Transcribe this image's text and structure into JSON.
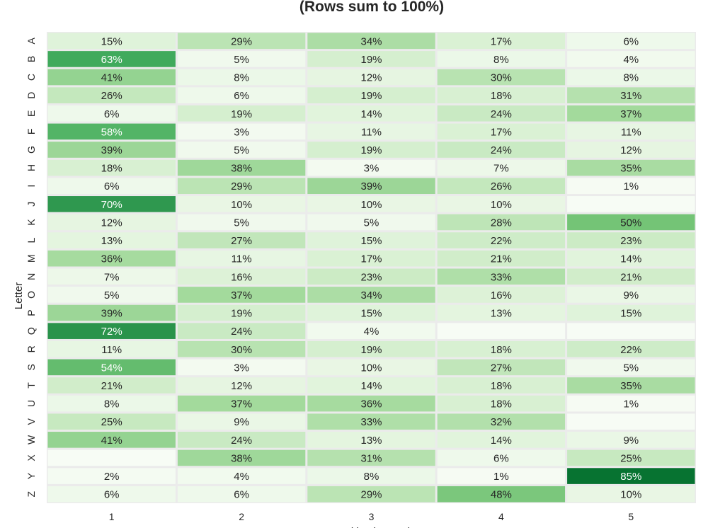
{
  "chart_data": {
    "type": "heatmap",
    "title": "(Rows sum to 100%)",
    "xlabel": "Position in Word",
    "ylabel": "Letter",
    "colormap": "Greens",
    "vrange": [
      0,
      100
    ],
    "x": [
      "1",
      "2",
      "3",
      "4",
      "5"
    ],
    "y": [
      "A",
      "B",
      "C",
      "D",
      "E",
      "F",
      "G",
      "H",
      "I",
      "J",
      "K",
      "L",
      "M",
      "N",
      "O",
      "P",
      "Q",
      "R",
      "S",
      "T",
      "U",
      "V",
      "W",
      "X",
      "Y",
      "Z"
    ],
    "values": [
      [
        15,
        29,
        34,
        17,
        6
      ],
      [
        63,
        5,
        19,
        8,
        4
      ],
      [
        41,
        8,
        12,
        30,
        8
      ],
      [
        26,
        6,
        19,
        18,
        31
      ],
      [
        6,
        19,
        14,
        24,
        37
      ],
      [
        58,
        3,
        11,
        17,
        11
      ],
      [
        39,
        5,
        19,
        24,
        12
      ],
      [
        18,
        38,
        3,
        7,
        35
      ],
      [
        6,
        29,
        39,
        26,
        1
      ],
      [
        70,
        10,
        10,
        10,
        null
      ],
      [
        12,
        5,
        5,
        28,
        50
      ],
      [
        13,
        27,
        15,
        22,
        23
      ],
      [
        36,
        11,
        17,
        21,
        14
      ],
      [
        7,
        16,
        23,
        33,
        21
      ],
      [
        5,
        37,
        34,
        16,
        9
      ],
      [
        39,
        19,
        15,
        13,
        15
      ],
      [
        72,
        24,
        4,
        null,
        null
      ],
      [
        11,
        30,
        19,
        18,
        22
      ],
      [
        54,
        3,
        10,
        27,
        5
      ],
      [
        21,
        12,
        14,
        18,
        35
      ],
      [
        8,
        37,
        36,
        18,
        1
      ],
      [
        25,
        9,
        33,
        32,
        null
      ],
      [
        41,
        24,
        13,
        14,
        9
      ],
      [
        null,
        38,
        31,
        6,
        25
      ],
      [
        2,
        4,
        8,
        1,
        85
      ],
      [
        6,
        6,
        29,
        48,
        10
      ]
    ],
    "value_format": "percent",
    "grid": false
  }
}
